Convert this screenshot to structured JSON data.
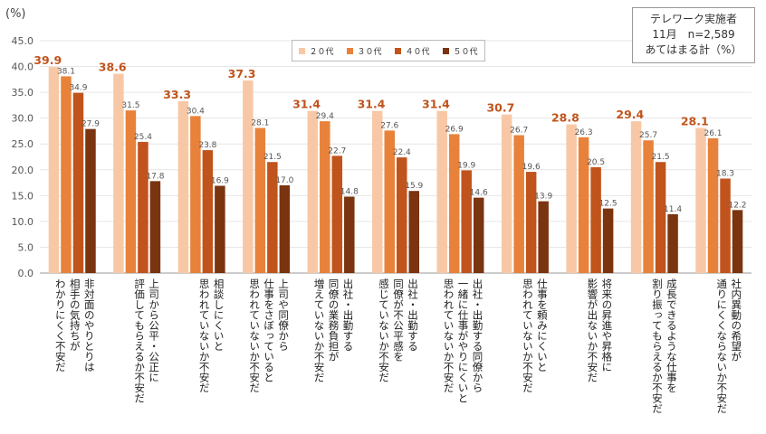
{
  "unit_label": "(%)",
  "note": {
    "line1": "テレワーク実施者",
    "line2": "11月　n=2,589",
    "line3": "あてはまる計（%）"
  },
  "colors": {
    "20s": "#f8c8a6",
    "30s": "#e8823a",
    "40s": "#c0541c",
    "50s": "#7a3410",
    "label_emph": "#c0541c",
    "label_small": "#555555",
    "axis_text": "#555555",
    "grid": "#e6e6e6"
  },
  "chart_data": {
    "type": "bar",
    "ylim": [
      0,
      45
    ],
    "yticks": [
      "0.0",
      "5.0",
      "10.0",
      "15.0",
      "20.0",
      "25.0",
      "30.0",
      "35.0",
      "40.0",
      "45.0"
    ],
    "grid": true,
    "legend_position": "top",
    "categories": [
      [
        "非対面のやりとりは",
        "相手の気持ちが",
        "わかりにくく不安だ"
      ],
      [
        "上司から公平・公正に",
        "評価してもらえるか不安だ"
      ],
      [
        "相談しにくいと",
        "思われていないか不安だ"
      ],
      [
        "上司や同僚から",
        "仕事をさぼっていると",
        "思われていないか不安だ"
      ],
      [
        "出社・出勤する",
        "同僚の業務負担が",
        "増えていないか不安だ"
      ],
      [
        "出社・出勤する",
        "同僚が不公平感を",
        "感じていないか不安だ"
      ],
      [
        "出社・出勤する同僚から",
        "一緒に仕事がやりにくいと",
        "思われていないか不安だ"
      ],
      [
        "仕事を頼みにくいと",
        "思われていないか不安だ"
      ],
      [
        "将来の昇進や昇格に",
        "影響が出ないか不安だ"
      ],
      [
        "成長できるような仕事を",
        "割り振ってもらえるか不安だ"
      ],
      [
        "社内異動の希望が",
        "通りにくくならないか不安だ"
      ]
    ],
    "series": [
      {
        "name": "２０代",
        "key": "20s",
        "values": [
          39.9,
          38.6,
          33.3,
          37.3,
          31.4,
          31.4,
          31.4,
          30.7,
          28.8,
          29.4,
          28.1
        ]
      },
      {
        "name": "３０代",
        "key": "30s",
        "values": [
          38.1,
          31.5,
          30.4,
          28.1,
          29.4,
          27.6,
          26.9,
          26.7,
          26.3,
          25.7,
          26.1
        ]
      },
      {
        "name": "４０代",
        "key": "40s",
        "values": [
          34.9,
          25.4,
          23.8,
          21.5,
          22.7,
          22.4,
          19.9,
          19.6,
          20.5,
          21.5,
          18.3
        ]
      },
      {
        "name": "５０代",
        "key": "50s",
        "values": [
          27.9,
          17.8,
          16.9,
          17.0,
          14.8,
          15.9,
          14.6,
          13.9,
          12.5,
          11.4,
          12.2
        ]
      }
    ]
  }
}
